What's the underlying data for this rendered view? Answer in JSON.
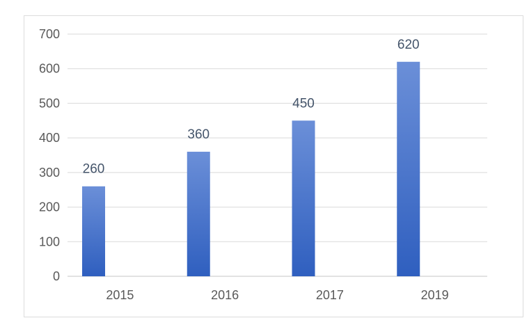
{
  "chart_data": {
    "type": "bar",
    "categories": [
      "2015",
      "2016",
      "2017",
      "2019"
    ],
    "values": [
      260,
      360,
      450,
      620
    ],
    "data_labels": [
      "260",
      "360",
      "450",
      "620"
    ],
    "ylim": [
      0,
      700
    ],
    "yticks": [
      0,
      100,
      200,
      300,
      400,
      500,
      600,
      700
    ],
    "ytick_labels": [
      "0",
      "100",
      "200",
      "300",
      "400",
      "500",
      "600",
      "700"
    ],
    "grid": true,
    "legend": "none",
    "colors": {
      "bar_top": "#6b8fd8",
      "bar_bottom": "#2f5fbf",
      "grid": "#d9d9d9",
      "tick_text": "#595959",
      "label_text": "#44546a"
    }
  }
}
